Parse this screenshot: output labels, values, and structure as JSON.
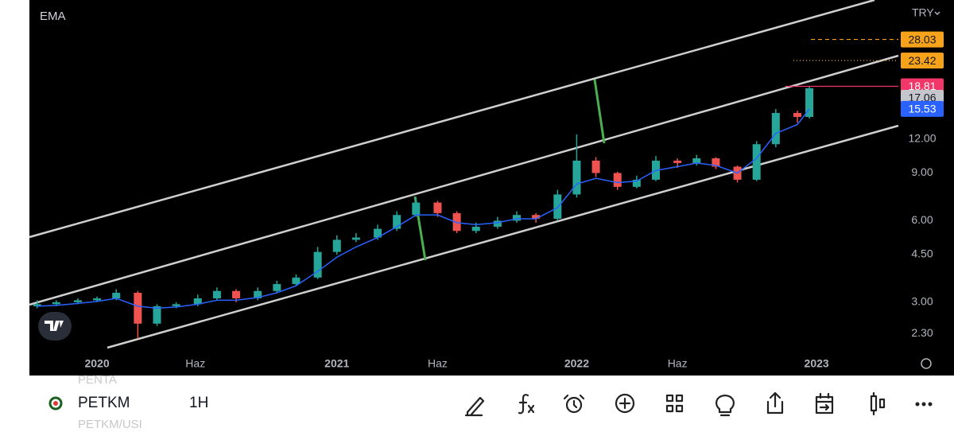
{
  "chart_data": {
    "type": "candlestick",
    "title": "EMA",
    "currency": "TRY",
    "log_scale": true,
    "up_color": "#26a69a",
    "down_color": "#ef5350",
    "x": [
      2019.75,
      2019.83,
      2019.92,
      2020.0,
      2020.08,
      2020.17,
      2020.25,
      2020.33,
      2020.42,
      2020.5,
      2020.58,
      2020.67,
      2020.75,
      2020.83,
      2020.92,
      2021.0,
      2021.08,
      2021.17,
      2021.25,
      2021.33,
      2021.42,
      2021.5,
      2021.58,
      2021.67,
      2021.75,
      2021.83,
      2021.92,
      2022.0,
      2022.08,
      2022.17,
      2022.25,
      2022.33,
      2022.42,
      2022.5,
      2022.58,
      2022.67,
      2022.75,
      2022.83,
      2022.92,
      2022.97
    ],
    "open": [
      2.9,
      2.95,
      3.0,
      3.05,
      3.1,
      3.25,
      2.5,
      2.9,
      2.95,
      3.1,
      3.3,
      3.1,
      3.3,
      3.5,
      3.7,
      4.6,
      5.1,
      5.2,
      5.6,
      6.3,
      7.0,
      6.4,
      5.5,
      5.7,
      6.0,
      6.3,
      6.1,
      7.5,
      10.0,
      9.0,
      8.0,
      8.5,
      10.0,
      9.8,
      10.2,
      9.5,
      8.5,
      11.5,
      15.0,
      14.5
    ],
    "high": [
      3.05,
      3.05,
      3.1,
      3.15,
      3.35,
      3.3,
      2.95,
      3.0,
      3.2,
      3.4,
      3.35,
      3.4,
      3.6,
      3.8,
      4.8,
      5.3,
      5.4,
      5.8,
      6.5,
      7.3,
      7.1,
      6.5,
      5.9,
      6.2,
      6.5,
      6.4,
      7.8,
      12.5,
      10.3,
      9.1,
      8.8,
      10.4,
      10.2,
      10.5,
      10.3,
      9.6,
      11.8,
      15.5,
      15.3,
      18.9
    ],
    "low": [
      2.85,
      2.9,
      2.95,
      3.0,
      3.05,
      2.2,
      2.45,
      2.85,
      2.9,
      3.05,
      3.0,
      3.05,
      3.25,
      3.45,
      3.65,
      4.5,
      5.0,
      5.1,
      5.5,
      6.2,
      6.2,
      5.4,
      5.4,
      5.6,
      5.9,
      5.9,
      6.0,
      7.3,
      8.7,
      7.8,
      7.9,
      8.4,
      9.4,
      9.6,
      9.3,
      8.3,
      8.4,
      11.2,
      13.8,
      14.3
    ],
    "close": [
      2.95,
      3.0,
      3.05,
      3.1,
      3.25,
      2.5,
      2.9,
      2.95,
      3.1,
      3.3,
      3.1,
      3.3,
      3.5,
      3.7,
      4.6,
      5.1,
      5.2,
      5.6,
      6.3,
      7.0,
      6.4,
      5.5,
      5.7,
      6.0,
      6.3,
      6.1,
      7.5,
      10.0,
      9.0,
      8.0,
      8.5,
      10.0,
      9.8,
      10.2,
      9.5,
      8.5,
      11.5,
      15.0,
      14.5,
      18.5
    ],
    "ema": {
      "color": "#2962ff",
      "values": [
        2.9,
        2.92,
        2.97,
        3.02,
        3.1,
        2.9,
        2.85,
        2.88,
        2.95,
        3.05,
        3.05,
        3.12,
        3.25,
        3.45,
        3.9,
        4.4,
        4.8,
        5.2,
        5.7,
        6.3,
        6.3,
        5.9,
        5.8,
        5.9,
        6.1,
        6.1,
        6.7,
        8.2,
        8.6,
        8.3,
        8.4,
        9.2,
        9.5,
        9.8,
        9.6,
        9.0,
        10.2,
        12.6,
        13.6,
        15.5
      ]
    },
    "xlim": [
      2019.718,
      2023.341
    ],
    "xticks": [
      {
        "value": 2020,
        "label": "2020"
      },
      {
        "value": 2020.41,
        "label": "Haz"
      },
      {
        "value": 2021,
        "label": "2021"
      },
      {
        "value": 2021.42,
        "label": "Haz"
      },
      {
        "value": 2022,
        "label": "2022"
      },
      {
        "value": 2022.42,
        "label": "Haz"
      },
      {
        "value": 2023,
        "label": "2023"
      }
    ],
    "ylim": [
      1.63,
      39.2
    ],
    "yticks": [
      {
        "value": 2.3,
        "label": "2.30"
      },
      {
        "value": 3,
        "label": "3.00"
      },
      {
        "value": 4.5,
        "label": "4.50"
      },
      {
        "value": 6,
        "label": "6.00"
      },
      {
        "value": 9,
        "label": "9.00"
      },
      {
        "value": 12,
        "label": "12.00"
      }
    ],
    "price_labels": [
      {
        "value": 28.03,
        "color": "#f7a21b",
        "text_color": "#131722"
      },
      {
        "value": 23.42,
        "color": "#f7a21b",
        "text_color": "#131722"
      },
      {
        "value": 18.81,
        "color": "#f23668",
        "text_color": "#ffffff"
      },
      {
        "value": 17.06,
        "color": "#c4c6cc",
        "text_color": "#131722"
      },
      {
        "value": 15.53,
        "color": "#2962ff",
        "text_color": "#ffffff"
      }
    ]
  },
  "toolbar": {
    "symbol": "PETKM",
    "interval": "1H",
    "above": "PENTA",
    "below": "PETKM/USI"
  }
}
